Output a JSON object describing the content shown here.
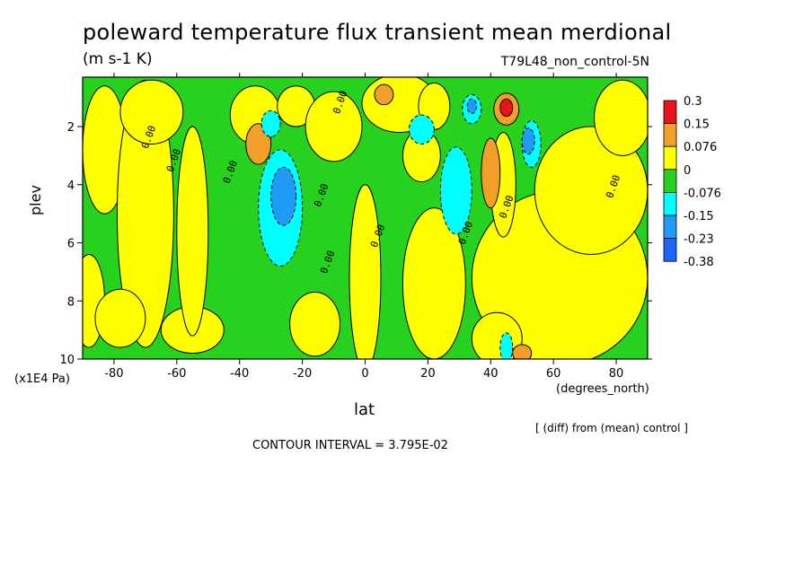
{
  "chart_data": {
    "type": "heatmap",
    "title": "poleward temperature flux transient mean merdional",
    "units": "(m s-1 K)",
    "run_name": "T79L48_non_control-5N",
    "xlabel": "lat",
    "x_units": "(degrees_north)",
    "ylabel": "plev",
    "y_units": "(x1E4 Pa)",
    "xlim": [
      -90,
      90
    ],
    "ylim": [
      10,
      0.3
    ],
    "x_ticks": [
      -80,
      -60,
      -40,
      -20,
      0,
      20,
      40,
      60,
      80
    ],
    "x_tick_labels": [
      "-80",
      "-60",
      "-40",
      "-20",
      "0",
      "20",
      "40",
      "60",
      "80"
    ],
    "y_ticks": [
      2,
      4,
      6,
      8,
      10
    ],
    "y_tick_labels": [
      "2",
      "4",
      "6",
      "8",
      "10"
    ],
    "legend": {
      "placement": "right",
      "levels": [
        "0.3",
        "0.15",
        "0.076",
        "0",
        "-0.076",
        "-0.15",
        "-0.23",
        "-0.38"
      ],
      "colors": [
        "#e8141c",
        "#f0a028",
        "#ffff00",
        "#27d21e",
        "#00ffff",
        "#1e9bf5",
        "#1e64ff"
      ]
    },
    "contour_labels": [
      "0.00",
      "0.00",
      "0.00",
      "0.00",
      "0.00",
      "0.00",
      "0.00",
      "0.00",
      "0.00",
      "0.00"
    ],
    "note": "[ (diff) from (mean) control ]",
    "contour_interval": "CONTOUR INTERVAL = 3.795E-02",
    "background_color": "#27d21e",
    "features": [
      {
        "value": 0.04,
        "lat": -83,
        "p": 2.8,
        "rlat": 7,
        "rp": 2.2,
        "color": "#ffff00"
      },
      {
        "value": 0.04,
        "lat": -70,
        "p": 5.0,
        "rlat": 9,
        "rp": 4.6,
        "color": "#ffff00"
      },
      {
        "value": 0.04,
        "lat": -88,
        "p": 8.0,
        "rlat": 5,
        "rp": 1.6,
        "color": "#ffff00"
      },
      {
        "value": 0.04,
        "lat": -78,
        "p": 8.6,
        "rlat": 8,
        "rp": 1.0,
        "color": "#ffff00"
      },
      {
        "value": 0.04,
        "lat": -55,
        "p": 9.0,
        "rlat": 10,
        "rp": 0.8,
        "color": "#ffff00"
      },
      {
        "value": 0.04,
        "lat": -68,
        "p": 1.5,
        "rlat": 10,
        "rp": 1.1,
        "color": "#ffff00"
      },
      {
        "value": 0.04,
        "lat": -55,
        "p": 5.6,
        "rlat": 5,
        "rp": 3.6,
        "color": "#ffff00"
      },
      {
        "value": 0.04,
        "lat": -35,
        "p": 1.6,
        "rlat": 8,
        "rp": 1.0,
        "color": "#ffff00"
      },
      {
        "value": 0.04,
        "lat": -22,
        "p": 1.3,
        "rlat": 6,
        "rp": 0.7,
        "color": "#ffff00"
      },
      {
        "value": 0.04,
        "lat": -10,
        "p": 2.0,
        "rlat": 9,
        "rp": 1.2,
        "color": "#ffff00"
      },
      {
        "value": 0.04,
        "lat": -16,
        "p": 8.8,
        "rlat": 8,
        "rp": 1.1,
        "color": "#ffff00"
      },
      {
        "value": 0.04,
        "lat": 0,
        "p": 7.2,
        "rlat": 5,
        "rp": 3.2,
        "color": "#ffff00"
      },
      {
        "value": 0.04,
        "lat": 11,
        "p": 1.2,
        "rlat": 12,
        "rp": 1.0,
        "color": "#ffff00"
      },
      {
        "value": 0.04,
        "lat": 22,
        "p": 1.3,
        "rlat": 5,
        "rp": 0.8,
        "color": "#ffff00"
      },
      {
        "value": 0.04,
        "lat": 18,
        "p": 3.0,
        "rlat": 6,
        "rp": 0.9,
        "color": "#ffff00"
      },
      {
        "value": 0.04,
        "lat": 22,
        "p": 7.4,
        "rlat": 10,
        "rp": 2.6,
        "color": "#ffff00"
      },
      {
        "value": 0.04,
        "lat": 62,
        "p": 7.2,
        "rlat": 28,
        "rp": 3.0,
        "color": "#ffff00"
      },
      {
        "value": 0.04,
        "lat": 72,
        "p": 4.2,
        "rlat": 18,
        "rp": 2.2,
        "color": "#ffff00"
      },
      {
        "value": 0.04,
        "lat": 82,
        "p": 1.7,
        "rlat": 9,
        "rp": 1.3,
        "color": "#ffff00"
      },
      {
        "value": 0.04,
        "lat": 44,
        "p": 4.0,
        "rlat": 4,
        "rp": 1.8,
        "color": "#ffff00"
      },
      {
        "value": 0.04,
        "lat": 42,
        "p": 9.3,
        "rlat": 8,
        "rp": 0.9,
        "color": "#ffff00"
      },
      {
        "value": 0.1,
        "lat": -34,
        "p": 2.6,
        "rlat": 4,
        "rp": 0.7,
        "color": "#f0a028"
      },
      {
        "value": 0.1,
        "lat": 6,
        "p": 0.9,
        "rlat": 3,
        "rp": 0.35,
        "color": "#f0a028"
      },
      {
        "value": 0.1,
        "lat": 40,
        "p": 3.6,
        "rlat": 3,
        "rp": 1.2,
        "color": "#f0a028"
      },
      {
        "value": 0.1,
        "lat": 45,
        "p": 1.4,
        "rlat": 4,
        "rp": 0.55,
        "color": "#f0a028"
      },
      {
        "value": 0.1,
        "lat": 50,
        "p": 9.8,
        "rlat": 3,
        "rp": 0.3,
        "color": "#f0a028"
      },
      {
        "value": 0.2,
        "lat": 45,
        "p": 1.35,
        "rlat": 2,
        "rp": 0.3,
        "color": "#e8141c"
      },
      {
        "value": -0.1,
        "lat": -27,
        "p": 4.8,
        "rlat": 7,
        "rp": 2.0,
        "color": "#00ffff"
      },
      {
        "value": -0.1,
        "lat": -30,
        "p": 1.9,
        "rlat": 3,
        "rp": 0.45,
        "color": "#00ffff"
      },
      {
        "value": -0.1,
        "lat": 29,
        "p": 4.2,
        "rlat": 5,
        "rp": 1.5,
        "color": "#00ffff"
      },
      {
        "value": -0.1,
        "lat": 18,
        "p": 2.1,
        "rlat": 4,
        "rp": 0.5,
        "color": "#00ffff"
      },
      {
        "value": -0.1,
        "lat": 34,
        "p": 1.4,
        "rlat": 3,
        "rp": 0.5,
        "color": "#00ffff"
      },
      {
        "value": -0.1,
        "lat": 53,
        "p": 2.6,
        "rlat": 3,
        "rp": 0.8,
        "color": "#00ffff"
      },
      {
        "value": -0.1,
        "lat": 45,
        "p": 9.6,
        "rlat": 2,
        "rp": 0.5,
        "color": "#00ffff"
      },
      {
        "value": -0.19,
        "lat": -26,
        "p": 4.4,
        "rlat": 4,
        "rp": 1.0,
        "color": "#1e9bf5"
      },
      {
        "value": -0.19,
        "lat": 52,
        "p": 2.5,
        "rlat": 2,
        "rp": 0.45,
        "color": "#1e9bf5"
      },
      {
        "value": -0.19,
        "lat": 34,
        "p": 1.3,
        "rlat": 1.5,
        "rp": 0.25,
        "color": "#1e9bf5"
      }
    ]
  }
}
